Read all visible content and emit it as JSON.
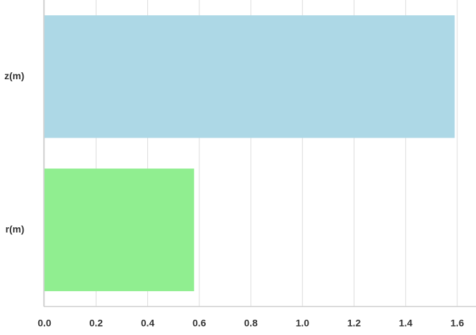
{
  "chart_data": {
    "type": "barh",
    "categories": [
      "z(m)",
      "r(m)"
    ],
    "values": [
      1.59,
      0.58
    ],
    "colors": [
      "#add8e6",
      "#90ee90"
    ],
    "xlim": [
      0,
      1.67
    ],
    "xticks": [
      {
        "value": 0,
        "label": "0.0"
      },
      0.2,
      0.4,
      0.6,
      0.8,
      {
        "value": 1,
        "label": "1.0"
      },
      1.2,
      1.4,
      1.6
    ],
    "grid": true
  }
}
